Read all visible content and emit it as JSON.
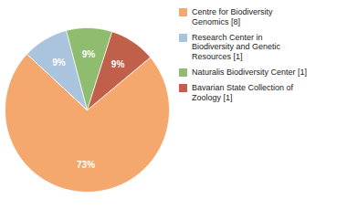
{
  "chart_data": {
    "type": "pie",
    "categories": [
      "Centre for Biodiversity\nGenomics [8]",
      "Research Center in\nBiodiversity and Genetic\nResources [1]",
      "Naturalis Biodiversity Center [1]",
      "Bavarian State Collection of\nZoology [1]"
    ],
    "values": [
      73,
      9,
      9,
      9
    ],
    "value_labels": [
      "73%",
      "9%",
      "9%",
      "9%"
    ],
    "colors": [
      "#f5a86e",
      "#aac4de",
      "#8fbc6e",
      "#c0604a"
    ],
    "data_labels": true,
    "legend": "right"
  }
}
